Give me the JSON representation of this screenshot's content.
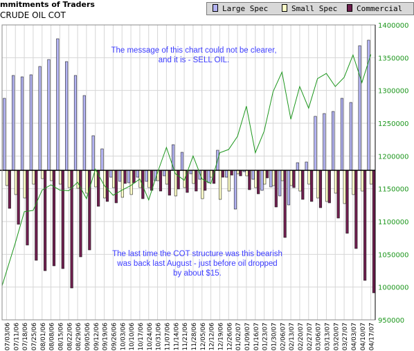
{
  "header": {
    "title": "mmitments of Traders",
    "subtitle": "CRUDE OIL COT"
  },
  "annotations": {
    "top_line1": "The message of this chart could not be clearer,",
    "top_line2": "and it is - SELL OIL.",
    "bottom_line1": "The last time the COT structure was this bearish",
    "bottom_line2": "was back last August - just before oil dropped",
    "bottom_line3": "by about $15."
  },
  "colors": {
    "large_spec": "#b4b4f4",
    "small_spec": "#ffffc8",
    "commercial": "#6e1e4e",
    "price_line": "#1c961c",
    "grid": "#d6d6d6",
    "right_axis_text": "#1c961c"
  },
  "chart_data": {
    "type": "bar",
    "title": "CRUDE OIL COT",
    "legend_position": "top-right",
    "grid": true,
    "categories": [
      "07/03/06",
      "07/11/06",
      "07/18/06",
      "07/25/06",
      "08/01/06",
      "08/08/06",
      "08/15/06",
      "08/22/06",
      "08/29/06",
      "09/05/06",
      "09/12/06",
      "09/19/06",
      "09/26/06",
      "10/03/06",
      "10/10/06",
      "10/17/06",
      "10/24/06",
      "10/31/06",
      "11/07/06",
      "11/14/06",
      "11/21/06",
      "11/28/06",
      "12/05/06",
      "12/12/06",
      "12/19/06",
      "12/26/06",
      "01/02/07",
      "01/09/07",
      "01/16/07",
      "01/23/07",
      "01/30/07",
      "02/06/07",
      "02/13/07",
      "02/20/07",
      "02/27/07",
      "03/06/07",
      "03/13/07",
      "03/20/07",
      "03/27/07",
      "04/03/07",
      "04/10/07",
      "04/17/07"
    ],
    "x_tick_labels": [
      "07/03/06",
      "07/11/06",
      "07/18/06",
      "07/25/06",
      "08/01/06",
      "08/08/06",
      "08/15/06",
      "08/22/06",
      "08/29/06",
      "09/05/06",
      "09/12/06",
      "09/19/06",
      "09/26/06",
      "10/03/06",
      "10/10/06",
      "10/17/06",
      "10/24/06",
      "10/31/06",
      "11/07/06",
      "11/14/06",
      "11/21/06",
      "11/28/06",
      "12/05/06",
      "12/12/06",
      "12/19/06",
      "12/26/06",
      "01/02/07",
      "01/09/07",
      "01/16/07",
      "01/23/07",
      "01/30/07",
      "02/06/07",
      "02/13/07",
      "02/20/07",
      "02/27/07",
      "03/06/07",
      "03/13/07",
      "03/20/07",
      "03/27/07",
      "04/03/07",
      "04/10/07",
      "04/17/07"
    ],
    "net_position_series": [
      {
        "name": "Large Spec",
        "values": [
          104,
          137,
          135,
          138,
          150,
          160,
          190,
          157,
          137,
          108,
          50,
          31,
          -10,
          -16,
          -18,
          -10,
          -16,
          -15,
          -8,
          37,
          26,
          -5,
          -13,
          -18,
          29,
          -10,
          -56,
          -2,
          -13,
          -29,
          -24,
          -37,
          -50,
          11,
          12,
          78,
          82,
          85,
          104,
          98,
          180,
          188
        ]
      },
      {
        "name": "Small Spec",
        "values": [
          -22,
          -35,
          -40,
          -20,
          -12,
          -15,
          -20,
          -25,
          -26,
          -33,
          -24,
          -40,
          -25,
          -39,
          -35,
          -25,
          -25,
          -15,
          -20,
          -37,
          -25,
          -19,
          -41,
          -10,
          -42,
          -30,
          -5,
          -8,
          -25,
          -20,
          -22,
          -15,
          -22,
          -30,
          -20,
          -40,
          -45,
          -33,
          -48,
          -35,
          -30,
          -20
        ]
      },
      {
        "name": "Commercial",
        "values": [
          -55,
          -78,
          -108,
          -130,
          -145,
          -138,
          -142,
          -170,
          -125,
          -115,
          -52,
          -45,
          -47,
          -19,
          -18,
          -41,
          -29,
          -30,
          -36,
          -27,
          -32,
          -30,
          -29,
          -19,
          -10,
          -7,
          -8,
          -28,
          -34,
          -11,
          -53,
          -97,
          -25,
          -42,
          -45,
          -54,
          -47,
          -69,
          -91,
          -113,
          -159,
          -177
        ]
      }
    ],
    "price_series": {
      "name": "",
      "values": [
        1002,
        1068,
        1115,
        1117,
        1148,
        1156,
        1148,
        1147,
        1160,
        1135,
        1180,
        1155,
        1140,
        1148,
        1155,
        1165,
        1133,
        1175,
        1213,
        1173,
        1163,
        1200,
        1165,
        1158,
        1205,
        1210,
        1230,
        1276,
        1205,
        1238,
        1298,
        1328,
        1256,
        1306,
        1273,
        1318,
        1326,
        1306,
        1320,
        1354,
        1312,
        1355
      ]
    },
    "right_axis": {
      "label": "",
      "ylim": [
        950000,
        1400000
      ],
      "ticks": [
        950000,
        1000000,
        1050000,
        1100000,
        1150000,
        1200000,
        1250000,
        1300000,
        1350000,
        1400000
      ],
      "tick_labels": [
        "950000",
        "1000000",
        "1050000",
        "1100000",
        "1150000",
        "1200000",
        "1250000",
        "1300000",
        "1350000",
        "1400000"
      ]
    },
    "xlabel": "",
    "ylabel": ""
  },
  "legend": [
    {
      "name": "Large Spec",
      "swatch": "large_spec"
    },
    {
      "name": "Small Spec",
      "swatch": "small_spec"
    },
    {
      "name": "Commercial",
      "swatch": "commercial"
    }
  ]
}
